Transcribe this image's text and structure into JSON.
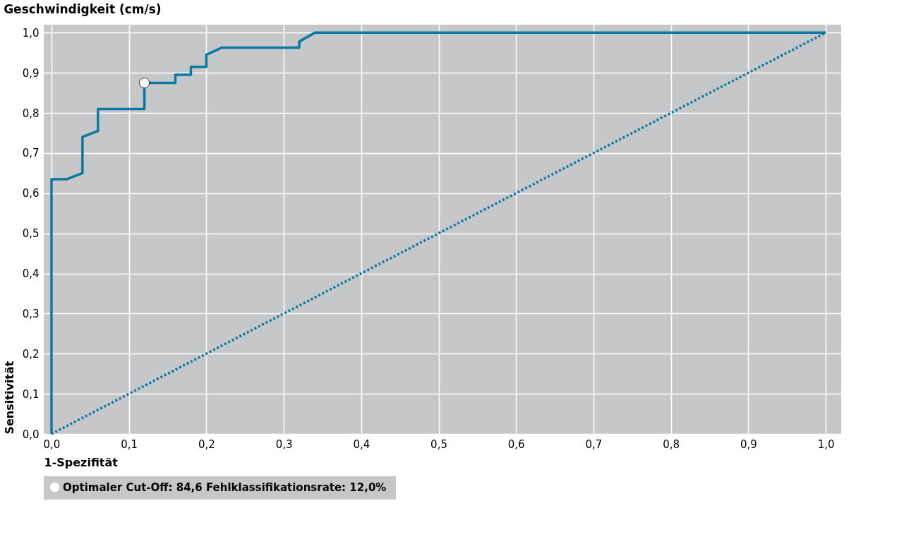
{
  "chart_data": {
    "type": "line",
    "title": "Geschwindigkeit (cm/s)",
    "xlabel": "1-Spezifität",
    "ylabel": "Sensitivität",
    "xlim": [
      -0.01,
      1.02
    ],
    "ylim": [
      0,
      1.02
    ],
    "xticks": [
      {
        "value": 0,
        "label": "0,0"
      },
      {
        "value": 0.1,
        "label": "0,1"
      },
      {
        "value": 0.2,
        "label": "0,2"
      },
      {
        "value": 0.3,
        "label": "0,3"
      },
      {
        "value": 0.4,
        "label": "0,4"
      },
      {
        "value": 0.5,
        "label": "0,5"
      },
      {
        "value": 0.6,
        "label": "0,6"
      },
      {
        "value": 0.7,
        "label": "0,7"
      },
      {
        "value": 0.8,
        "label": "0,8"
      },
      {
        "value": 0.9,
        "label": "0,9"
      },
      {
        "value": 1,
        "label": "1,0"
      }
    ],
    "yticks": [
      {
        "value": 0,
        "label": "0,0"
      },
      {
        "value": 0.1,
        "label": "0,1"
      },
      {
        "value": 0.2,
        "label": "0,2"
      },
      {
        "value": 0.3,
        "label": "0,3"
      },
      {
        "value": 0.4,
        "label": "0,4"
      },
      {
        "value": 0.5,
        "label": "0,5"
      },
      {
        "value": 0.6,
        "label": "0,6"
      },
      {
        "value": 0.7,
        "label": "0,7"
      },
      {
        "value": 0.8,
        "label": "0,8"
      },
      {
        "value": 0.9,
        "label": "0,9"
      },
      {
        "value": 1,
        "label": "1,0"
      }
    ],
    "grid": true,
    "legend": "bottom",
    "series": [
      {
        "color": "#0a78a3",
        "line_style": "solid",
        "marker": "none",
        "x": [
          0,
          0,
          0.02,
          0.04,
          0.04,
          0.06,
          0.06,
          0.12,
          0.12,
          0.16,
          0.16,
          0.18,
          0.18,
          0.2,
          0.2,
          0.22,
          0.32,
          0.32,
          0.34,
          1
        ],
        "values": [
          0,
          0.635,
          0.635,
          0.65,
          0.74,
          0.755,
          0.81,
          0.81,
          0.875,
          0.875,
          0.895,
          0.895,
          0.915,
          0.915,
          0.945,
          0.963,
          0.963,
          0.978,
          1,
          1
        ]
      },
      {
        "color": "#0a78a3",
        "line_style": "dotted",
        "marker": "none",
        "x": [
          0,
          1
        ],
        "values": [
          0,
          1
        ]
      },
      {
        "type": "scatter",
        "name": "Optimaler Cut-Off: 84,6  Fehlklassifikationsrate: 12,0%",
        "color": "#ffffff",
        "marker": "circle",
        "x": [
          0.12
        ],
        "values": [
          0.875
        ]
      }
    ]
  }
}
